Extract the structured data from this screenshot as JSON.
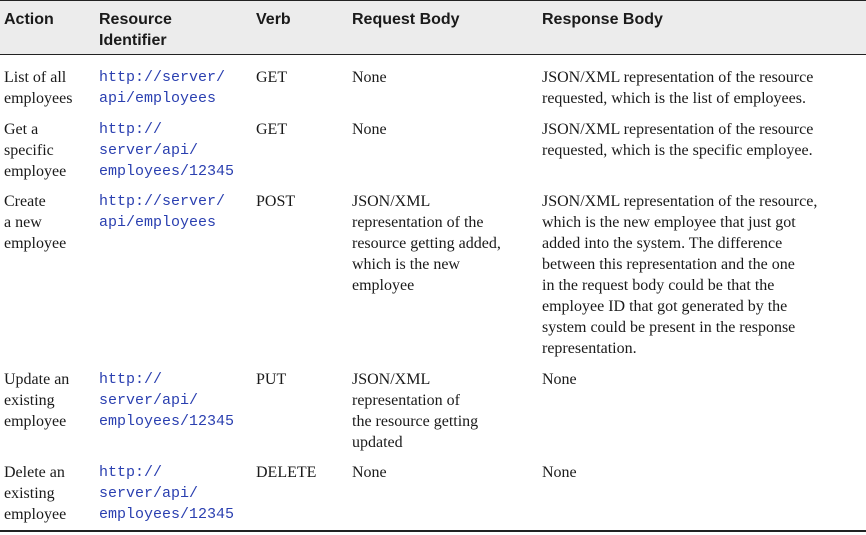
{
  "headers": {
    "action": "Action",
    "resource_line1": "Resource",
    "resource_line2": "Identifier",
    "verb": "Verb",
    "request_body": "Request Body",
    "response_body": "Response Body"
  },
  "rows": [
    {
      "action": [
        "List of all",
        "employees"
      ],
      "resource": [
        "http://server/",
        "api/employees"
      ],
      "verb": "GET",
      "request": [
        "None"
      ],
      "response": [
        "JSON/XML representation of the resource",
        "requested, which is the list of employees."
      ]
    },
    {
      "action": [
        "Get a",
        "specific",
        "employee"
      ],
      "resource": [
        "http://",
        "server/api/",
        "employees/12345"
      ],
      "verb": "GET",
      "request": [
        "None"
      ],
      "response": [
        "JSON/XML representation of the resource",
        "requested, which is the specific employee."
      ]
    },
    {
      "action": [
        "Create",
        "a new",
        "employee"
      ],
      "resource": [
        "http://server/",
        "api/employees"
      ],
      "verb": "POST",
      "request": [
        "JSON/XML",
        "representation of the",
        "resource getting added,",
        "which is the new",
        "employee"
      ],
      "response": [
        "JSON/XML representation of the resource,",
        "which is the new employee that just got",
        "added into the system. The difference",
        "between this representation and the one",
        "in the request body could be that the",
        "employee ID that got generated by the",
        "system could be present in the response",
        "representation."
      ]
    },
    {
      "action": [
        "Update an",
        "existing",
        "employee"
      ],
      "resource": [
        "http://",
        "server/api/",
        "employees/12345"
      ],
      "verb": "PUT",
      "request": [
        "JSON/XML",
        "representation of",
        "the resource getting",
        "updated"
      ],
      "response": [
        "None"
      ]
    },
    {
      "action": [
        "Delete an",
        "existing",
        "employee"
      ],
      "resource": [
        "http://",
        "server/api/",
        "employees/12345"
      ],
      "verb": "DELETE",
      "request": [
        "None"
      ],
      "response": [
        "None"
      ]
    }
  ]
}
